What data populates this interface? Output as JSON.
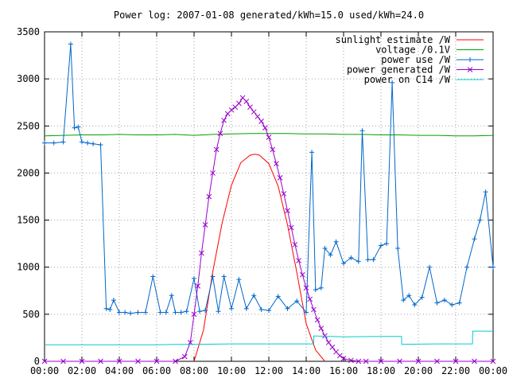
{
  "chart_data": {
    "type": "line",
    "title": "Power log: 2007-01-08 generated/kWh=15.0 used/kWh=24.0",
    "xlabel": "",
    "ylabel": "",
    "x_unit": "hours",
    "xlim": [
      0,
      24
    ],
    "ylim": [
      0,
      3500
    ],
    "grid": true,
    "legend_position": "top-right",
    "x_ticks": [
      {
        "value": 0,
        "label": "00:00"
      },
      {
        "value": 2,
        "label": "02:00"
      },
      {
        "value": 4,
        "label": "04:00"
      },
      {
        "value": 6,
        "label": "06:00"
      },
      {
        "value": 8,
        "label": "08:00"
      },
      {
        "value": 10,
        "label": "10:00"
      },
      {
        "value": 12,
        "label": "12:00"
      },
      {
        "value": 14,
        "label": "14:00"
      },
      {
        "value": 16,
        "label": "16:00"
      },
      {
        "value": 18,
        "label": "18:00"
      },
      {
        "value": 20,
        "label": "20:00"
      },
      {
        "value": 22,
        "label": "22:00"
      },
      {
        "value": 24,
        "label": "00:00"
      }
    ],
    "y_ticks": [
      {
        "value": 0,
        "label": "0"
      },
      {
        "value": 500,
        "label": "500"
      },
      {
        "value": 1000,
        "label": "1000"
      },
      {
        "value": 1500,
        "label": "1500"
      },
      {
        "value": 2000,
        "label": "2000"
      },
      {
        "value": 2500,
        "label": "2500"
      },
      {
        "value": 3000,
        "label": "3000"
      },
      {
        "value": 3500,
        "label": "3500"
      }
    ],
    "series": [
      {
        "name": "sunlight estimate /W",
        "color": "#ff0000",
        "marker": "none",
        "x": [
          8.0,
          8.5,
          9.0,
          9.5,
          10.0,
          10.5,
          11.0,
          11.25,
          11.5,
          12.0,
          12.5,
          13.0,
          13.5,
          14.0,
          14.5,
          15.0
        ],
        "y": [
          0,
          330,
          950,
          1470,
          1870,
          2110,
          2190,
          2200,
          2190,
          2100,
          1860,
          1450,
          940,
          400,
          120,
          0
        ]
      },
      {
        "name": "voltage /0.1V",
        "color": "#00a000",
        "marker": "none",
        "x": [
          0,
          1,
          2,
          3,
          4,
          5,
          6,
          7,
          8,
          9,
          10,
          11,
          12,
          13,
          14,
          15,
          16,
          17,
          18,
          19,
          20,
          21,
          22,
          23,
          24
        ],
        "y": [
          2395,
          2400,
          2405,
          2405,
          2410,
          2405,
          2405,
          2410,
          2400,
          2410,
          2415,
          2420,
          2420,
          2420,
          2415,
          2415,
          2410,
          2410,
          2405,
          2405,
          2400,
          2400,
          2395,
          2395,
          2400
        ]
      },
      {
        "name": "power use /W",
        "color": "#0066cc",
        "marker": "plus",
        "x": [
          0.0,
          0.5,
          1.0,
          1.4,
          1.6,
          1.8,
          2.0,
          2.3,
          2.6,
          3.0,
          3.3,
          3.5,
          3.7,
          4.0,
          4.3,
          4.6,
          5.0,
          5.4,
          5.8,
          6.2,
          6.5,
          6.8,
          7.0,
          7.3,
          7.6,
          8.0,
          8.3,
          8.6,
          9.0,
          9.3,
          9.6,
          10.0,
          10.4,
          10.8,
          11.2,
          11.6,
          12.0,
          12.5,
          13.0,
          13.5,
          14.0,
          14.3,
          14.5,
          14.8,
          15.0,
          15.3,
          15.6,
          16.0,
          16.4,
          16.8,
          17.0,
          17.3,
          17.6,
          18.0,
          18.3,
          18.6,
          18.9,
          19.2,
          19.5,
          19.8,
          20.2,
          20.6,
          21.0,
          21.4,
          21.8,
          22.2,
          22.6,
          23.0,
          23.3,
          23.6,
          24.0
        ],
        "y": [
          2320,
          2320,
          2330,
          3370,
          2480,
          2490,
          2330,
          2320,
          2310,
          2300,
          560,
          550,
          650,
          520,
          520,
          510,
          520,
          520,
          900,
          520,
          520,
          700,
          520,
          520,
          530,
          880,
          530,
          540,
          900,
          530,
          900,
          560,
          870,
          560,
          700,
          550,
          540,
          690,
          560,
          640,
          520,
          2220,
          760,
          780,
          1200,
          1130,
          1270,
          1040,
          1100,
          1060,
          2450,
          1080,
          1080,
          1230,
          1250,
          2960,
          1200,
          650,
          700,
          600,
          680,
          1000,
          620,
          650,
          600,
          620,
          1000,
          1300,
          1500,
          1800,
          1000
        ]
      },
      {
        "name": "power generated /W",
        "color": "#9900cc",
        "marker": "cross",
        "x": [
          0,
          1,
          2,
          3,
          4,
          5,
          6,
          7,
          7.5,
          7.8,
          8.0,
          8.2,
          8.4,
          8.6,
          8.8,
          9.0,
          9.2,
          9.4,
          9.6,
          9.8,
          10.0,
          10.2,
          10.4,
          10.6,
          10.8,
          11.0,
          11.2,
          11.4,
          11.6,
          11.8,
          12.0,
          12.2,
          12.4,
          12.6,
          12.8,
          13.0,
          13.2,
          13.4,
          13.6,
          13.8,
          14.0,
          14.2,
          14.4,
          14.6,
          14.8,
          15.0,
          15.2,
          15.4,
          15.6,
          15.8,
          16.0,
          16.4,
          16.8,
          17.2,
          18,
          19,
          20,
          21,
          22,
          23,
          24
        ],
        "y": [
          0,
          0,
          0,
          0,
          0,
          0,
          0,
          0,
          50,
          200,
          500,
          800,
          1150,
          1450,
          1750,
          2000,
          2250,
          2420,
          2560,
          2630,
          2670,
          2700,
          2740,
          2800,
          2760,
          2700,
          2650,
          2600,
          2550,
          2480,
          2380,
          2250,
          2100,
          1950,
          1780,
          1600,
          1420,
          1240,
          1070,
          920,
          780,
          660,
          550,
          440,
          350,
          270,
          200,
          150,
          100,
          60,
          30,
          10,
          0,
          0,
          0,
          0,
          0,
          0,
          0,
          0,
          0
        ]
      },
      {
        "name": "power on C14 /W",
        "color": "#00cccc",
        "marker": "none",
        "x": [
          0,
          6,
          7,
          8,
          10,
          12,
          14.4,
          14.41,
          16,
          18,
          19.1,
          19.11,
          21,
          22.9,
          22.91,
          24
        ],
        "y": [
          175,
          175,
          180,
          180,
          185,
          185,
          185,
          270,
          260,
          265,
          265,
          180,
          185,
          185,
          320,
          320
        ]
      }
    ]
  }
}
